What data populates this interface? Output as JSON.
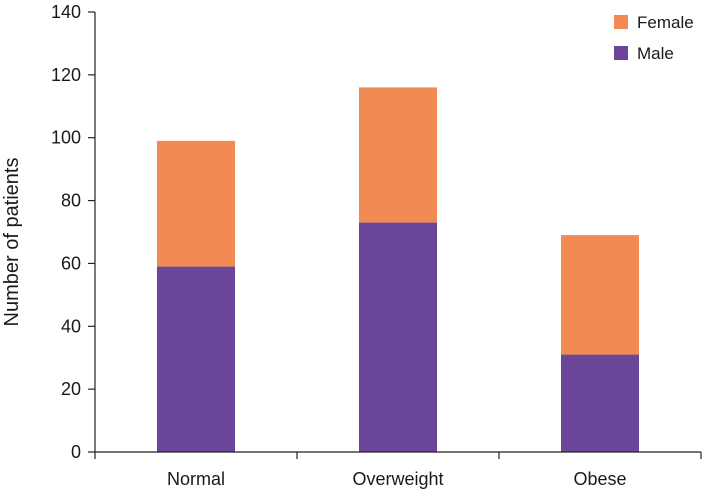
{
  "chart_data": {
    "type": "bar",
    "stacked": true,
    "categories": [
      "Normal",
      "Overweight",
      "Obese"
    ],
    "series": [
      {
        "name": "Male",
        "values": [
          59,
          73,
          31
        ],
        "color": "#6b4698"
      },
      {
        "name": "Female",
        "values": [
          40,
          43,
          38
        ],
        "color": "#f28a54"
      }
    ],
    "ylabel": "Number of patients",
    "xlabel": "",
    "ylim": [
      0,
      140
    ],
    "yticks": [
      0,
      20,
      40,
      60,
      80,
      100,
      120,
      140
    ],
    "grid": false,
    "legend": {
      "position": "top-right",
      "order": [
        "Female",
        "Male"
      ]
    }
  }
}
